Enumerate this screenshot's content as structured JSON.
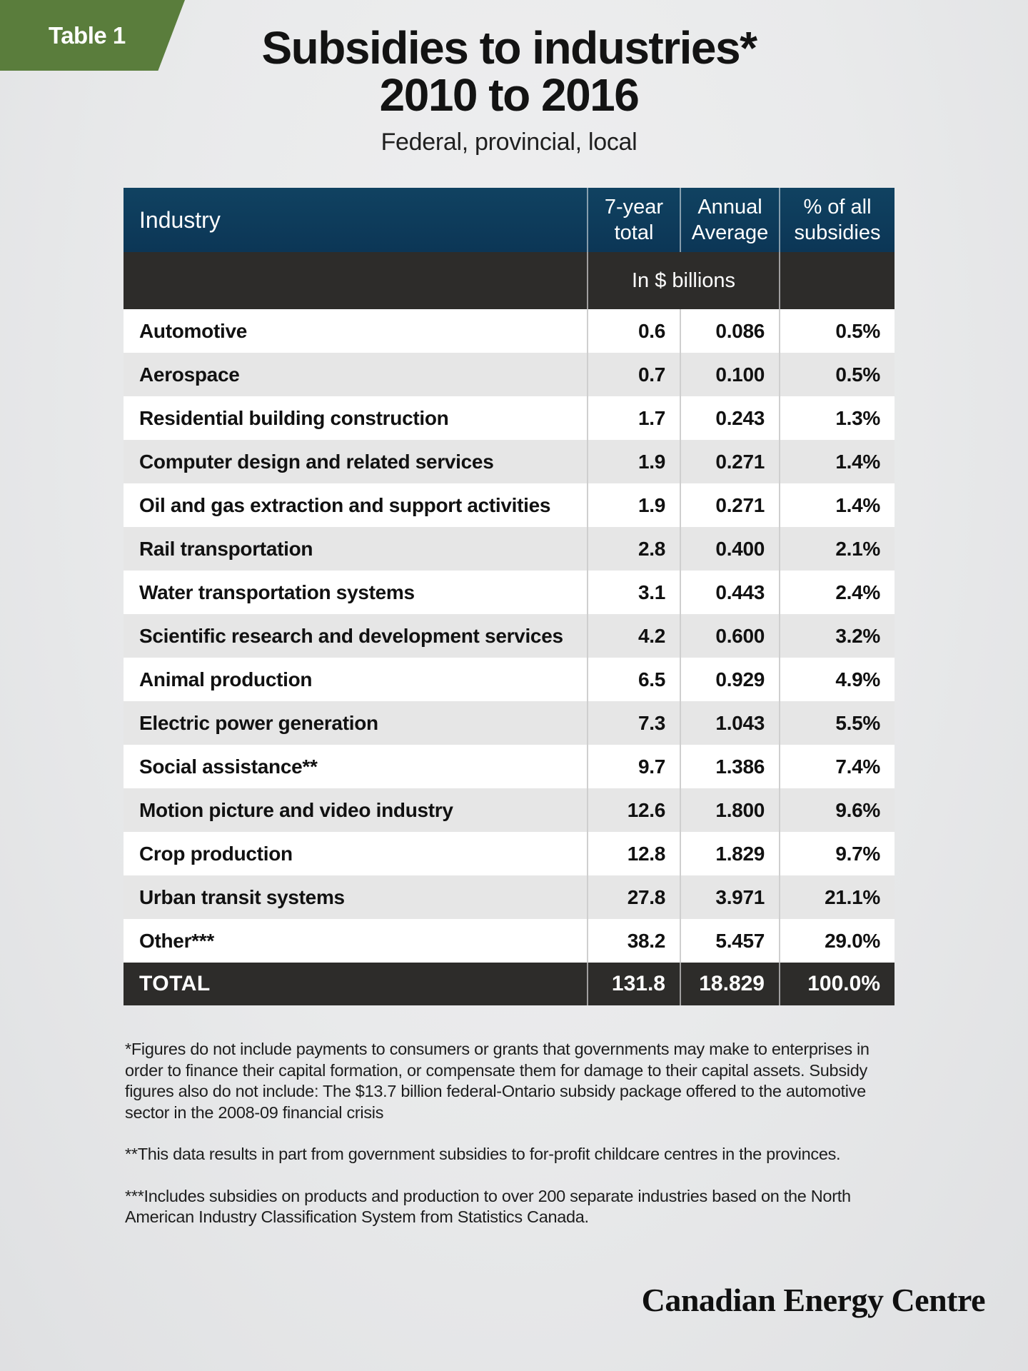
{
  "badge": {
    "label": "Table 1"
  },
  "title": {
    "line1": "Subsidies to industries*",
    "line2": "2010 to 2016",
    "subtitle": "Federal, provincial, local"
  },
  "chart_data": {
    "type": "table",
    "title": "Subsidies to industries* 2010 to 2016",
    "subtitle": "Federal, provincial, local",
    "columns": [
      "Industry",
      "7-year total",
      "Annual Average",
      "% of all subsidies"
    ],
    "unit_label": "In $ billions",
    "rows": [
      {
        "industry": "Automotive",
        "seven_year_total": "0.6",
        "annual_average": "0.086",
        "pct_of_all": "0.5%"
      },
      {
        "industry": "Aerospace",
        "seven_year_total": "0.7",
        "annual_average": "0.100",
        "pct_of_all": "0.5%"
      },
      {
        "industry": "Residential building construction",
        "seven_year_total": "1.7",
        "annual_average": "0.243",
        "pct_of_all": "1.3%"
      },
      {
        "industry": "Computer design and related services",
        "seven_year_total": "1.9",
        "annual_average": "0.271",
        "pct_of_all": "1.4%"
      },
      {
        "industry": "Oil and gas extraction and support activities",
        "seven_year_total": "1.9",
        "annual_average": "0.271",
        "pct_of_all": "1.4%"
      },
      {
        "industry": "Rail transportation",
        "seven_year_total": "2.8",
        "annual_average": "0.400",
        "pct_of_all": "2.1%"
      },
      {
        "industry": "Water transportation systems",
        "seven_year_total": "3.1",
        "annual_average": "0.443",
        "pct_of_all": "2.4%"
      },
      {
        "industry": "Scientific research and development services",
        "seven_year_total": "4.2",
        "annual_average": "0.600",
        "pct_of_all": "3.2%"
      },
      {
        "industry": "Animal production",
        "seven_year_total": "6.5",
        "annual_average": "0.929",
        "pct_of_all": "4.9%"
      },
      {
        "industry": "Electric power generation",
        "seven_year_total": "7.3",
        "annual_average": "1.043",
        "pct_of_all": "5.5%"
      },
      {
        "industry": "Social assistance**",
        "seven_year_total": "9.7",
        "annual_average": "1.386",
        "pct_of_all": "7.4%"
      },
      {
        "industry": "Motion picture and video industry",
        "seven_year_total": "12.6",
        "annual_average": "1.800",
        "pct_of_all": "9.6%"
      },
      {
        "industry": "Crop production",
        "seven_year_total": "12.8",
        "annual_average": "1.829",
        "pct_of_all": "9.7%"
      },
      {
        "industry": "Urban transit systems",
        "seven_year_total": "27.8",
        "annual_average": "3.971",
        "pct_of_all": "21.1%"
      },
      {
        "industry": "Other***",
        "seven_year_total": "38.2",
        "annual_average": "5.457",
        "pct_of_all": "29.0%"
      }
    ],
    "total_row": {
      "industry": "TOTAL",
      "seven_year_total": "131.8",
      "annual_average": "18.829",
      "pct_of_all": "100.0%"
    }
  },
  "footnotes": [
    "*Figures do not include payments to consumers or grants that governments may make to enterprises in order to finance their capital formation, or compensate them for damage to their capital assets. Subsidy figures also do not include: The $13.7 billion federal-Ontario subsidy package offered to the automotive sector in the 2008-09 financial crisis",
    "**This data results in part from government subsidies to for-profit childcare centres in the provinces.",
    "***Includes subsidies on products and production to over 200 separate industries based on the North American Industry Classification System from Statistics Canada."
  ],
  "brand": {
    "name": "Canadian Energy Centre"
  },
  "colors": {
    "badge_green": "#5a7d3c",
    "header_navy": "#0e3d5e",
    "band_charcoal": "#2d2c2a",
    "row_alt_gray": "#e6e6e6",
    "divider_gray": "#cfcfcf"
  }
}
